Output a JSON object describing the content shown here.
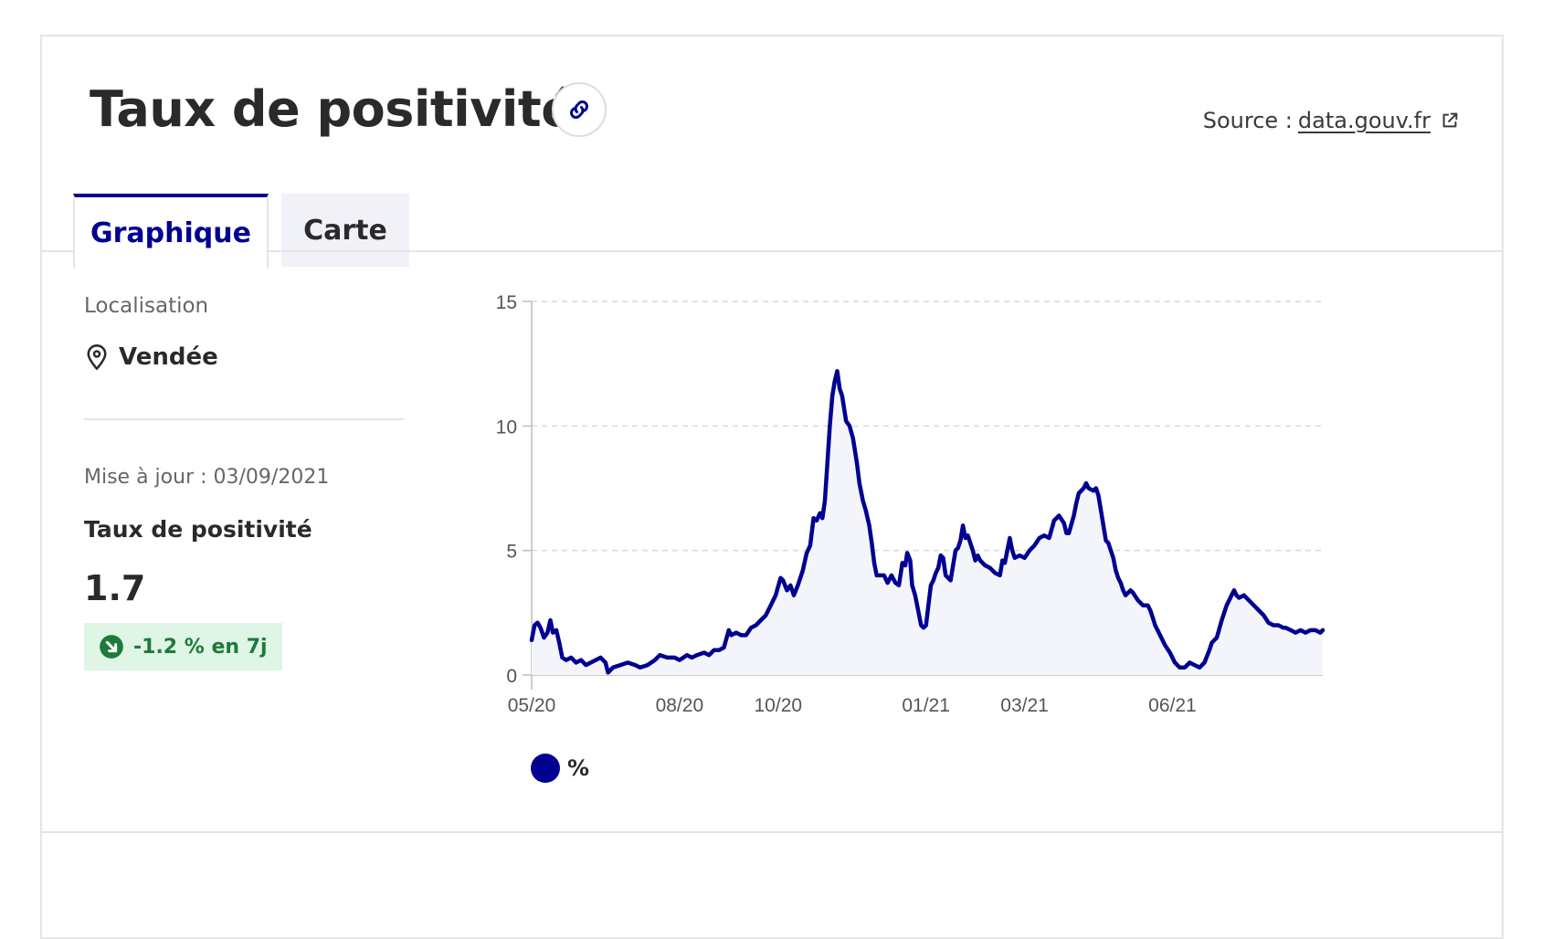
{
  "header": {
    "title": "Taux de positivité",
    "link_icon": "link-icon",
    "source_label": "Source :",
    "source_link": "data.gouv.fr",
    "external_icon": "external-link-icon"
  },
  "tabs": [
    {
      "label": "Graphique",
      "active": true
    },
    {
      "label": "Carte",
      "active": false
    }
  ],
  "sidebar": {
    "location_label": "Localisation",
    "location_icon": "map-pin-icon",
    "location_value": "Vendée",
    "update_text": "Mise à jour : 03/09/2021",
    "kpi_label": "Taux de positivité",
    "kpi_value": "1.7",
    "trend_icon": "arrow-down-right-icon",
    "trend_text": "-1.2 % en 7j"
  },
  "colors": {
    "primary": "#000091",
    "badge_bg": "#dff5e6",
    "badge_text": "#1f7a3a"
  },
  "chart_data": {
    "type": "area",
    "title": "",
    "xlabel": "",
    "ylabel": "",
    "ylim": [
      0,
      15
    ],
    "yticks": [
      0,
      5,
      10,
      15
    ],
    "x_start": "05/20",
    "x_end": "09/21",
    "xticks": [
      {
        "label": "05/20",
        "month_index": 0
      },
      {
        "label": "08/20",
        "month_index": 3
      },
      {
        "label": "10/20",
        "month_index": 5
      },
      {
        "label": "01/21",
        "month_index": 8
      },
      {
        "label": "03/21",
        "month_index": 10
      },
      {
        "label": "06/21",
        "month_index": 13
      }
    ],
    "grid": true,
    "legend": "bottom-left",
    "series": [
      {
        "name": "%",
        "color": "#000091",
        "points": [
          [
            0.0,
            1.4
          ],
          [
            0.06,
            2.0
          ],
          [
            0.12,
            2.1
          ],
          [
            0.18,
            1.9
          ],
          [
            0.25,
            1.5
          ],
          [
            0.32,
            1.7
          ],
          [
            0.38,
            2.2
          ],
          [
            0.43,
            1.7
          ],
          [
            0.5,
            1.8
          ],
          [
            0.56,
            1.3
          ],
          [
            0.62,
            0.7
          ],
          [
            0.7,
            0.6
          ],
          [
            0.8,
            0.7
          ],
          [
            0.9,
            0.5
          ],
          [
            1.0,
            0.6
          ],
          [
            1.1,
            0.4
          ],
          [
            1.2,
            0.5
          ],
          [
            1.3,
            0.6
          ],
          [
            1.4,
            0.7
          ],
          [
            1.5,
            0.5
          ],
          [
            1.55,
            0.1
          ],
          [
            1.65,
            0.3
          ],
          [
            1.8,
            0.4
          ],
          [
            1.95,
            0.5
          ],
          [
            2.1,
            0.4
          ],
          [
            2.2,
            0.3
          ],
          [
            2.35,
            0.4
          ],
          [
            2.5,
            0.6
          ],
          [
            2.6,
            0.8
          ],
          [
            2.75,
            0.7
          ],
          [
            2.9,
            0.7
          ],
          [
            3.0,
            0.6
          ],
          [
            3.15,
            0.8
          ],
          [
            3.25,
            0.7
          ],
          [
            3.35,
            0.8
          ],
          [
            3.5,
            0.9
          ],
          [
            3.6,
            0.8
          ],
          [
            3.7,
            1.0
          ],
          [
            3.8,
            1.0
          ],
          [
            3.9,
            1.1
          ],
          [
            4.0,
            1.8
          ],
          [
            4.05,
            1.6
          ],
          [
            4.15,
            1.7
          ],
          [
            4.25,
            1.6
          ],
          [
            4.35,
            1.6
          ],
          [
            4.45,
            1.9
          ],
          [
            4.55,
            2.0
          ],
          [
            4.65,
            2.2
          ],
          [
            4.75,
            2.4
          ],
          [
            4.85,
            2.8
          ],
          [
            4.95,
            3.2
          ],
          [
            5.05,
            3.9
          ],
          [
            5.1,
            3.8
          ],
          [
            5.18,
            3.4
          ],
          [
            5.25,
            3.6
          ],
          [
            5.32,
            3.2
          ],
          [
            5.4,
            3.6
          ],
          [
            5.5,
            4.2
          ],
          [
            5.58,
            4.9
          ],
          [
            5.65,
            5.2
          ],
          [
            5.72,
            6.3
          ],
          [
            5.78,
            6.2
          ],
          [
            5.85,
            6.5
          ],
          [
            5.9,
            6.3
          ],
          [
            5.95,
            7.0
          ],
          [
            6.0,
            8.5
          ],
          [
            6.05,
            10.0
          ],
          [
            6.1,
            11.2
          ],
          [
            6.15,
            11.8
          ],
          [
            6.2,
            12.2
          ],
          [
            6.25,
            11.5
          ],
          [
            6.3,
            11.2
          ],
          [
            6.38,
            10.2
          ],
          [
            6.45,
            10.0
          ],
          [
            6.52,
            9.5
          ],
          [
            6.6,
            8.5
          ],
          [
            6.65,
            7.7
          ],
          [
            6.72,
            7.0
          ],
          [
            6.78,
            6.6
          ],
          [
            6.85,
            6.0
          ],
          [
            6.9,
            5.3
          ],
          [
            6.95,
            4.5
          ],
          [
            7.0,
            4.0
          ],
          [
            7.08,
            4.0
          ],
          [
            7.15,
            4.0
          ],
          [
            7.22,
            3.7
          ],
          [
            7.3,
            4.0
          ],
          [
            7.38,
            3.7
          ],
          [
            7.45,
            3.6
          ],
          [
            7.52,
            4.5
          ],
          [
            7.58,
            4.4
          ],
          [
            7.62,
            4.9
          ],
          [
            7.68,
            4.6
          ],
          [
            7.72,
            3.6
          ],
          [
            7.78,
            3.2
          ],
          [
            7.85,
            2.5
          ],
          [
            7.9,
            2.0
          ],
          [
            7.95,
            1.9
          ],
          [
            8.0,
            2.0
          ],
          [
            8.05,
            2.8
          ],
          [
            8.1,
            3.6
          ],
          [
            8.15,
            3.8
          ],
          [
            8.2,
            4.1
          ],
          [
            8.25,
            4.3
          ],
          [
            8.3,
            4.8
          ],
          [
            8.35,
            4.7
          ],
          [
            8.4,
            4.0
          ],
          [
            8.45,
            3.9
          ],
          [
            8.5,
            3.8
          ],
          [
            8.55,
            4.4
          ],
          [
            8.6,
            5.0
          ],
          [
            8.65,
            5.1
          ],
          [
            8.7,
            5.4
          ],
          [
            8.75,
            6.0
          ],
          [
            8.8,
            5.5
          ],
          [
            8.85,
            5.6
          ],
          [
            8.9,
            5.3
          ],
          [
            8.95,
            5.0
          ],
          [
            9.0,
            4.6
          ],
          [
            9.05,
            4.8
          ],
          [
            9.1,
            4.6
          ],
          [
            9.2,
            4.4
          ],
          [
            9.3,
            4.3
          ],
          [
            9.4,
            4.1
          ],
          [
            9.5,
            4.0
          ],
          [
            9.55,
            4.6
          ],
          [
            9.6,
            4.5
          ],
          [
            9.65,
            5.0
          ],
          [
            9.7,
            5.5
          ],
          [
            9.75,
            5.0
          ],
          [
            9.8,
            4.7
          ],
          [
            9.9,
            4.8
          ],
          [
            10.0,
            4.7
          ],
          [
            10.1,
            5.0
          ],
          [
            10.2,
            5.2
          ],
          [
            10.3,
            5.5
          ],
          [
            10.4,
            5.6
          ],
          [
            10.5,
            5.5
          ],
          [
            10.6,
            6.2
          ],
          [
            10.7,
            6.4
          ],
          [
            10.8,
            6.1
          ],
          [
            10.85,
            5.7
          ],
          [
            10.9,
            5.7
          ],
          [
            11.0,
            6.4
          ],
          [
            11.05,
            6.9
          ],
          [
            11.1,
            7.3
          ],
          [
            11.2,
            7.5
          ],
          [
            11.25,
            7.7
          ],
          [
            11.3,
            7.5
          ],
          [
            11.4,
            7.4
          ],
          [
            11.45,
            7.5
          ],
          [
            11.5,
            7.2
          ],
          [
            11.55,
            6.6
          ],
          [
            11.6,
            6.0
          ],
          [
            11.65,
            5.4
          ],
          [
            11.7,
            5.3
          ],
          [
            11.75,
            5.0
          ],
          [
            11.8,
            4.7
          ],
          [
            11.85,
            4.2
          ],
          [
            11.9,
            3.9
          ],
          [
            11.95,
            3.7
          ],
          [
            12.0,
            3.4
          ],
          [
            12.05,
            3.2
          ],
          [
            12.15,
            3.4
          ],
          [
            12.2,
            3.3
          ],
          [
            12.3,
            3.0
          ],
          [
            12.4,
            2.8
          ],
          [
            12.5,
            2.8
          ],
          [
            12.55,
            2.6
          ],
          [
            12.6,
            2.3
          ],
          [
            12.65,
            2.0
          ],
          [
            12.75,
            1.6
          ],
          [
            12.85,
            1.2
          ],
          [
            12.95,
            0.9
          ],
          [
            13.05,
            0.5
          ],
          [
            13.15,
            0.3
          ],
          [
            13.25,
            0.3
          ],
          [
            13.35,
            0.5
          ],
          [
            13.45,
            0.4
          ],
          [
            13.55,
            0.3
          ],
          [
            13.65,
            0.5
          ],
          [
            13.75,
            1.0
          ],
          [
            13.8,
            1.3
          ],
          [
            13.9,
            1.5
          ],
          [
            14.0,
            2.2
          ],
          [
            14.1,
            2.8
          ],
          [
            14.2,
            3.2
          ],
          [
            14.25,
            3.4
          ],
          [
            14.3,
            3.2
          ],
          [
            14.35,
            3.1
          ],
          [
            14.45,
            3.2
          ],
          [
            14.55,
            3.0
          ],
          [
            14.65,
            2.8
          ],
          [
            14.75,
            2.6
          ],
          [
            14.85,
            2.4
          ],
          [
            14.95,
            2.1
          ],
          [
            15.05,
            2.0
          ],
          [
            15.15,
            2.0
          ],
          [
            15.25,
            1.9
          ],
          [
            15.3,
            1.9
          ],
          [
            15.4,
            1.8
          ],
          [
            15.5,
            1.7
          ],
          [
            15.6,
            1.8
          ],
          [
            15.7,
            1.7
          ],
          [
            15.8,
            1.8
          ],
          [
            15.9,
            1.8
          ],
          [
            16.0,
            1.7
          ],
          [
            16.05,
            1.8
          ]
        ]
      }
    ]
  }
}
